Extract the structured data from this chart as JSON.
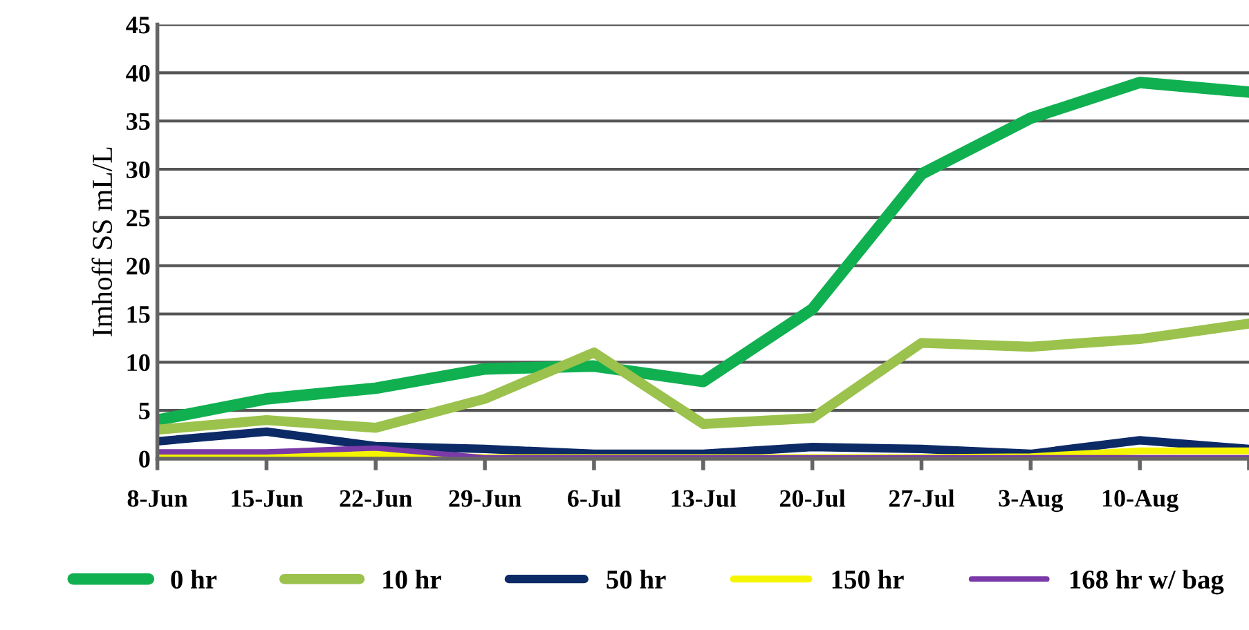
{
  "chart_data": {
    "type": "line",
    "ylabel": "Imhoff SS mL/L",
    "categories": [
      "8-Jun",
      "15-Jun",
      "22-Jun",
      "29-Jun",
      "6-Jul",
      "13-Jul",
      "20-Jul",
      "27-Jul",
      "3-Aug",
      "10-Aug",
      null
    ],
    "series": [
      {
        "name": "0 hr",
        "color": "#10b050",
        "values": [
          4,
          6.2,
          7.3,
          9.3,
          9.6,
          8,
          15.5,
          29.5,
          35.3,
          39,
          38
        ]
      },
      {
        "name": "10 hr",
        "color": "#9bc24c",
        "values": [
          3,
          4,
          3.2,
          6.2,
          11,
          3.6,
          4.2,
          12,
          11.6,
          12.4,
          14
        ]
      },
      {
        "name": "50 hr",
        "color": "#0c2a66",
        "values": [
          1.8,
          2.8,
          1.3,
          1,
          0.5,
          0.5,
          1.2,
          1,
          0.5,
          1.9,
          1
        ]
      },
      {
        "name": "150 hr",
        "color": "#f5f500",
        "values": [
          0.5,
          0.5,
          0.5,
          0.1,
          0.1,
          0.1,
          0.1,
          0.1,
          0.2,
          0.8,
          0.8
        ]
      },
      {
        "name": "168 hr w/ bag",
        "color": "#7a3aa8",
        "values": [
          0.7,
          0.7,
          1.1,
          0.1,
          0.1,
          0.1,
          0.1,
          0.1,
          0.1,
          0.1,
          0.1
        ]
      }
    ],
    "ylim": [
      0,
      45
    ],
    "yticks": [
      0,
      5,
      10,
      15,
      20,
      25,
      30,
      35,
      40,
      45
    ],
    "grid": "y",
    "legend": "bottom",
    "marker": "none",
    "line_style": "solid"
  }
}
